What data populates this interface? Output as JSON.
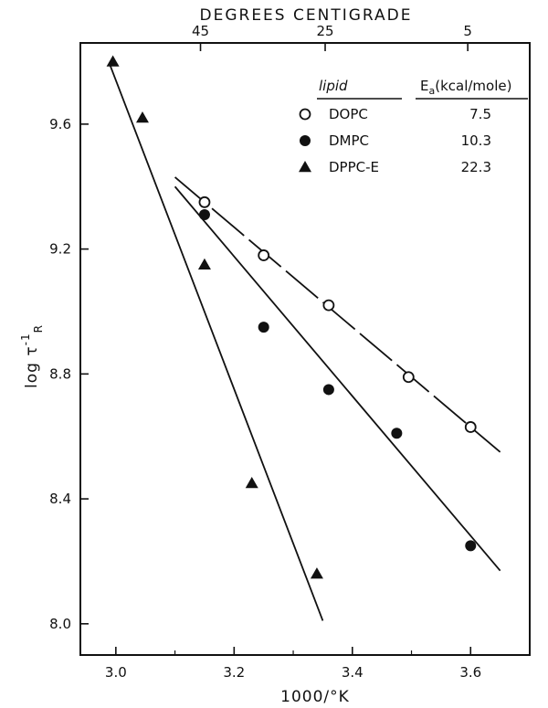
{
  "chart_data": {
    "type": "scatter",
    "top_axis_title": "DEGREES CENTIGRADE",
    "top_ticks": [
      {
        "label": "45",
        "value": 45
      },
      {
        "label": "25",
        "value": 25
      },
      {
        "label": "5",
        "value": 5
      }
    ],
    "xlabel": "1000/°K",
    "ylabel": "log τ",
    "ylabel_sup": "-1",
    "ylabel_sub": "R",
    "xlim": [
      2.94,
      3.7
    ],
    "ylim": [
      7.9,
      9.86
    ],
    "x_ticks": [
      {
        "label": "3.0",
        "value": 3.0
      },
      {
        "label": "3.2",
        "value": 3.2
      },
      {
        "label": "3.4",
        "value": 3.4
      },
      {
        "label": "3.6",
        "value": 3.6
      }
    ],
    "y_ticks": [
      {
        "label": "8.0",
        "value": 8.0
      },
      {
        "label": "8.4",
        "value": 8.4
      },
      {
        "label": "8.8",
        "value": 8.8
      },
      {
        "label": "9.2",
        "value": 9.2
      },
      {
        "label": "9.6",
        "value": 9.6
      }
    ],
    "legend_headers": {
      "lipid": "lipid",
      "ea": "E",
      "ea_sub": "a",
      "ea_units": "(kcal/mole)"
    },
    "series": [
      {
        "name": "DOPC",
        "ea": "7.5",
        "marker": "open-circle",
        "points": [
          [
            3.15,
            9.35
          ],
          [
            3.25,
            9.18
          ],
          [
            3.36,
            9.02
          ],
          [
            3.495,
            8.79
          ],
          [
            3.6,
            8.63
          ]
        ],
        "fit": [
          [
            3.1,
            9.43
          ],
          [
            3.65,
            8.55
          ]
        ]
      },
      {
        "name": "DMPC",
        "ea": "10.3",
        "marker": "filled-circle",
        "points": [
          [
            3.15,
            9.31
          ],
          [
            3.25,
            8.95
          ],
          [
            3.36,
            8.75
          ],
          [
            3.475,
            8.61
          ],
          [
            3.6,
            8.25
          ]
        ],
        "fit": [
          [
            3.1,
            9.4
          ],
          [
            3.65,
            8.17
          ]
        ]
      },
      {
        "name": "DPPC-E",
        "ea": "22.3",
        "marker": "filled-triangle",
        "points": [
          [
            2.995,
            9.8
          ],
          [
            3.045,
            9.62
          ],
          [
            3.15,
            9.15
          ],
          [
            3.23,
            8.45
          ],
          [
            3.34,
            8.16
          ]
        ],
        "fit": [
          [
            2.99,
            9.79
          ],
          [
            3.35,
            8.01
          ]
        ]
      }
    ]
  }
}
